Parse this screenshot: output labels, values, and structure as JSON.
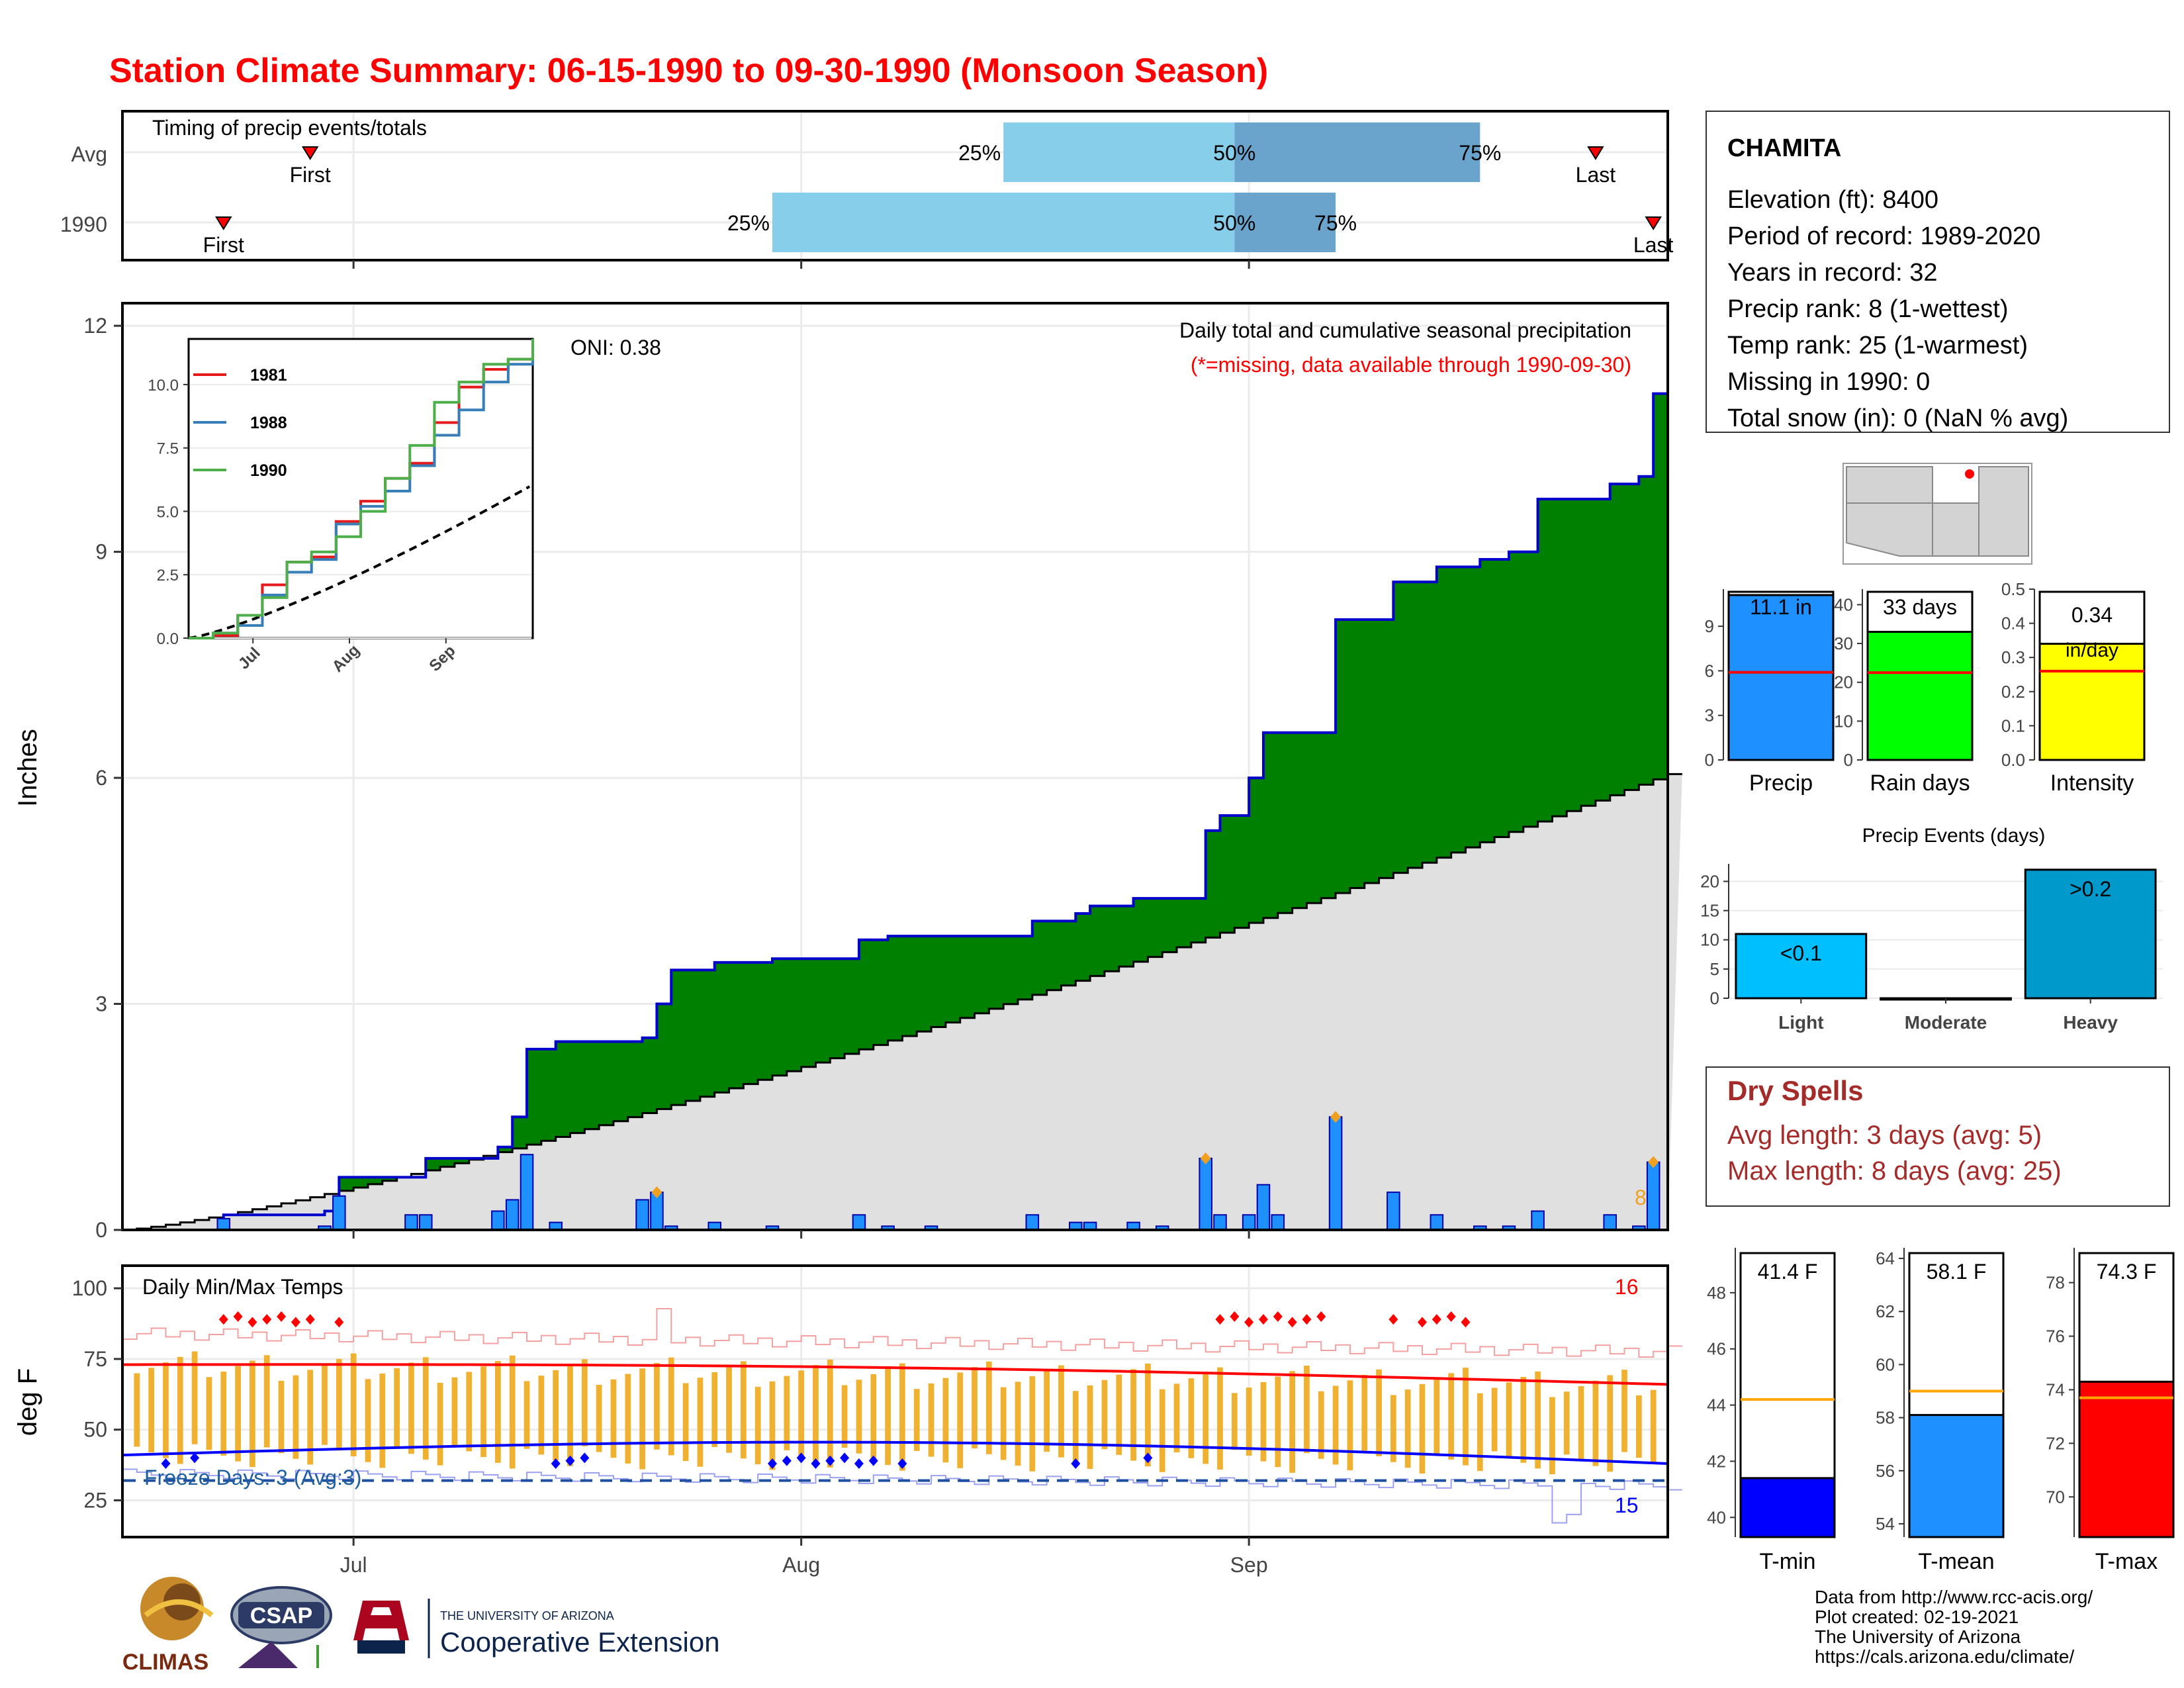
{
  "title": "Station Climate Summary: 06-15-1990 to 09-30-1990 (Monsoon Season)",
  "colors": {
    "title": "#ff0000",
    "precip_green": "#008000",
    "precip_gray": "#e0e0e0",
    "bar_blue": "#1e90ff",
    "tmin": "#0000ff",
    "tmean": "#1e90ff",
    "tmax": "#ff0000",
    "dry_spell": "#a52a2a",
    "temp_bar": "#f0b030"
  },
  "timing": {
    "label": "Timing of precip events/totals",
    "rows": [
      {
        "label": "Avg",
        "first": "First",
        "last": "Last",
        "p25": "25%",
        "p50": "50%",
        "p75": "75%",
        "first_day": 13,
        "p25_day": 61,
        "p50_day": 77,
        "p75_day": 94,
        "last_day": 102
      },
      {
        "label": "1990",
        "first": "First",
        "last": "Last",
        "p25": "25%",
        "p50": "50%",
        "p75": "75%",
        "first_day": 7,
        "p25_day": 45,
        "p50_day": 77,
        "p75_day": 84,
        "last_day": 106
      }
    ]
  },
  "precip_panel": {
    "ylabel": "Inches",
    "oni": "ONI: 0.38",
    "subtitle": "Daily total and cumulative seasonal precipitation",
    "missing_note": "(*=missing, data available through 1990-09-30)",
    "corner_count": "8",
    "yticks": [
      "0",
      "3",
      "6",
      "9",
      "12"
    ],
    "xticks": [
      "Jul",
      "Aug",
      "Sep"
    ]
  },
  "inset": {
    "series": [
      {
        "name": "1981",
        "color": "#e41a1c"
      },
      {
        "name": "1988",
        "color": "#377eb8"
      },
      {
        "name": "1990",
        "color": "#4daf4a"
      }
    ],
    "yticks": [
      "0.0",
      "2.5",
      "5.0",
      "7.5",
      "10.0"
    ],
    "xticks": [
      "Jul",
      "Aug",
      "Sep"
    ]
  },
  "temp_panel": {
    "ylabel": "deg F",
    "label": "Daily Min/Max Temps",
    "freeze": "Freeze Days: 3 (Avg:3)",
    "count_high": "16",
    "count_low": "15",
    "yticks": [
      "25",
      "50",
      "75",
      "100"
    ],
    "xticks": [
      "Jul",
      "Aug",
      "Sep"
    ]
  },
  "station": {
    "name": "CHAMITA",
    "lines": [
      "Elevation (ft): 8400",
      "Period of record: 1989-2020",
      "Years in record: 32",
      "Precip rank: 8 (1-wettest)",
      "Temp rank: 25 (1-warmest)",
      "Missing in 1990: 0",
      "Total snow (in): 0 (NaN % avg)"
    ]
  },
  "summary_bars": [
    {
      "label": "Precip",
      "value_text": "11.1 in",
      "value": 11.1,
      "avg": 5.9,
      "ymax": 11.5,
      "yticks": [
        "0",
        "3",
        "6",
        "9"
      ],
      "tickvals": [
        0,
        3,
        6,
        9
      ],
      "color": "#1e90ff"
    },
    {
      "label": "Rain days",
      "value_text": "33 days",
      "value": 33,
      "avg": 22.5,
      "ymax": 44,
      "yticks": [
        "0",
        "10",
        "20",
        "30",
        "40"
      ],
      "tickvals": [
        0,
        10,
        20,
        30,
        40
      ],
      "color": "#00ff00"
    },
    {
      "label": "Intensity",
      "value_text": "0.34",
      "value_text2": "in/day",
      "value": 0.34,
      "avg": 0.26,
      "ymax": 0.5,
      "yticks": [
        "0.0",
        "0.1",
        "0.2",
        "0.3",
        "0.4",
        "0.5"
      ],
      "tickvals": [
        0,
        0.1,
        0.2,
        0.3,
        0.4,
        0.5
      ],
      "color": "#ffff00"
    }
  ],
  "events": {
    "title": "Precip Events (days)",
    "categories": [
      "Light",
      "Moderate",
      "Heavy"
    ],
    "values": [
      11,
      0,
      22
    ],
    "labels": [
      "<0.1",
      "",
      ">0.2"
    ],
    "yticks": [
      "0",
      "5",
      "10",
      "15",
      "20"
    ],
    "colors": [
      "#00bfff",
      "#1e90ff",
      "#0099cc"
    ]
  },
  "dry_spells": {
    "title": "Dry Spells",
    "avg": "Avg length: 3 days (avg: 5)",
    "max": "Max length: 8 days (avg: 25)"
  },
  "temp_bars": [
    {
      "label": "T-min",
      "value_text": "41.4 F",
      "value": 41.4,
      "avg": 44.2,
      "ymin": 39.3,
      "ymax": 49.6,
      "yticks": [
        "40",
        "42",
        "44",
        "46",
        "48"
      ],
      "tickvals": [
        40,
        42,
        44,
        46,
        48
      ],
      "color": "#0000ff"
    },
    {
      "label": "T-mean",
      "value_text": "58.1 F",
      "value": 58.1,
      "avg": 59.0,
      "ymin": 53.5,
      "ymax": 64.4,
      "yticks": [
        "54",
        "56",
        "58",
        "60",
        "62",
        "64"
      ],
      "tickvals": [
        54,
        56,
        58,
        60,
        62,
        64
      ],
      "color": "#1e90ff"
    },
    {
      "label": "T-max",
      "value_text": "74.3 F",
      "value": 74.3,
      "avg": 73.7,
      "ymin": 68.5,
      "ymax": 79.3,
      "yticks": [
        "70",
        "72",
        "74",
        "76",
        "78"
      ],
      "tickvals": [
        70,
        72,
        74,
        76,
        78
      ],
      "color": "#ff0000"
    }
  ],
  "credits": [
    "Data from http://www.rcc-acis.org/",
    "Plot created: 02-19-2021",
    "The University of Arizona",
    "https://cals.arizona.edu/climate/"
  ],
  "logos": {
    "climas": "CLIMAS",
    "csap": "CSAP",
    "ua_small": "THE UNIVERSITY OF ARIZONA",
    "ua_big": "Cooperative Extension"
  },
  "chart_data": {
    "type": "area",
    "title": "Station Climate Summary: 06-15-1990 to 09-30-1990 (Monsoon Season)",
    "ylabel": "Inches",
    "xlim": [
      "1990-06-15",
      "1990-09-30"
    ],
    "ylim": [
      0,
      12
    ],
    "cumulative_1990_step_days": [
      0,
      7,
      8,
      14,
      15,
      20,
      21,
      26,
      27,
      28,
      29,
      30,
      36,
      37,
      38,
      39,
      41,
      45,
      51,
      53,
      56,
      63,
      66,
      67,
      70,
      72,
      75,
      76,
      78,
      79,
      80,
      84,
      88,
      90,
      91,
      94,
      96,
      98,
      103,
      105,
      106
    ],
    "cumulative_1990_step_values": [
      0.0,
      0.2,
      0.2,
      0.25,
      0.7,
      0.7,
      0.95,
      1.1,
      1.5,
      2.4,
      2.4,
      2.5,
      2.55,
      3.0,
      3.45,
      3.45,
      3.55,
      3.6,
      3.85,
      3.9,
      3.9,
      4.1,
      4.2,
      4.3,
      4.4,
      4.4,
      5.3,
      5.5,
      6.0,
      6.6,
      6.6,
      8.1,
      8.6,
      8.6,
      8.8,
      8.9,
      9.0,
      9.7,
      9.9,
      10.0,
      11.1
    ],
    "cumulative_avg_end": 6.05,
    "daily_precip_days": [
      7,
      14,
      15,
      20,
      21,
      26,
      27,
      28,
      30,
      36,
      37,
      38,
      41,
      45,
      51,
      53,
      56,
      63,
      66,
      67,
      70,
      72,
      75,
      76,
      78,
      79,
      80,
      84,
      88,
      91,
      94,
      96,
      98,
      103,
      105,
      106
    ],
    "daily_precip_values": [
      0.15,
      0.05,
      0.45,
      0.2,
      0.2,
      0.25,
      0.4,
      1.0,
      0.1,
      0.4,
      0.5,
      0.05,
      0.1,
      0.05,
      0.2,
      0.05,
      0.05,
      0.2,
      0.1,
      0.1,
      0.1,
      0.05,
      0.95,
      0.2,
      0.2,
      0.6,
      0.2,
      1.5,
      0.5,
      0.2,
      0.05,
      0.05,
      0.25,
      0.2,
      0.05,
      0.9
    ],
    "tmax_avg_start": 73,
    "tmax_avg_end": 66,
    "tmin_avg_start": 41,
    "tmin_avg_end": 38,
    "freeze_line": 32,
    "temp_ylim": [
      12,
      108
    ]
  }
}
